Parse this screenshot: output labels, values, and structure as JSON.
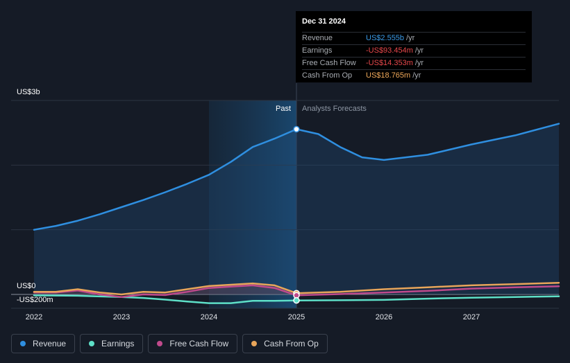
{
  "tooltip": {
    "date": "Dec 31 2024",
    "rows": [
      {
        "label": "Revenue",
        "value": "US$2.555b",
        "unit": "/yr",
        "color": "#3b9be8"
      },
      {
        "label": "Earnings",
        "value": "-US$93.454m",
        "unit": "/yr",
        "color": "#e8484b"
      },
      {
        "label": "Free Cash Flow",
        "value": "-US$14.353m",
        "unit": "/yr",
        "color": "#e8484b"
      },
      {
        "label": "Cash From Op",
        "value": "US$18.765m",
        "unit": "/yr",
        "color": "#f0a95a"
      }
    ]
  },
  "labels": {
    "past": "Past",
    "forecast": "Analysts Forecasts"
  },
  "legend": [
    {
      "label": "Revenue",
      "color": "#2f8fe0"
    },
    {
      "label": "Earnings",
      "color": "#5ee0c8"
    },
    {
      "label": "Free Cash Flow",
      "color": "#c04a8c"
    },
    {
      "label": "Cash From Op",
      "color": "#e8a55a"
    }
  ],
  "chart_data": {
    "type": "line",
    "y_ticks": [
      {
        "label": "US$3b",
        "value": 3000
      },
      {
        "label": "US$0",
        "value": 0
      },
      {
        "label": "-US$200m",
        "value": -200
      }
    ],
    "x_ticks": [
      {
        "label": "2022",
        "value": 2022.0
      },
      {
        "label": "2023",
        "value": 2023.0
      },
      {
        "label": "2024",
        "value": 2024.0
      },
      {
        "label": "2025",
        "value": 2025.0
      },
      {
        "label": "2026",
        "value": 2026.0
      },
      {
        "label": "2027",
        "value": 2027.0
      }
    ],
    "xlim": [
      2021.75,
      2028.0
    ],
    "ylim": [
      -290,
      3000
    ],
    "past_start": 2024.0,
    "now": 2025.0,
    "grid": true,
    "series": [
      {
        "name": "Revenue",
        "color": "#2f8fe0",
        "points": [
          [
            2022.0,
            1000
          ],
          [
            2022.25,
            1060
          ],
          [
            2022.5,
            1140
          ],
          [
            2022.75,
            1240
          ],
          [
            2023.0,
            1350
          ],
          [
            2023.25,
            1460
          ],
          [
            2023.5,
            1580
          ],
          [
            2023.75,
            1710
          ],
          [
            2024.0,
            1850
          ],
          [
            2024.25,
            2050
          ],
          [
            2024.5,
            2280
          ],
          [
            2024.75,
            2410
          ],
          [
            2025.0,
            2555
          ],
          [
            2025.25,
            2480
          ],
          [
            2025.5,
            2280
          ],
          [
            2025.75,
            2120
          ],
          [
            2026.0,
            2080
          ],
          [
            2026.5,
            2160
          ],
          [
            2027.0,
            2320
          ],
          [
            2027.5,
            2460
          ],
          [
            2028.0,
            2640
          ]
        ]
      },
      {
        "name": "Earnings",
        "color": "#5ee0c8",
        "points": [
          [
            2022.0,
            -15
          ],
          [
            2022.5,
            -20
          ],
          [
            2023.0,
            -40
          ],
          [
            2023.25,
            -55
          ],
          [
            2023.5,
            -80
          ],
          [
            2023.75,
            -110
          ],
          [
            2024.0,
            -135
          ],
          [
            2024.25,
            -135
          ],
          [
            2024.5,
            -100
          ],
          [
            2024.75,
            -100
          ],
          [
            2025.0,
            -93
          ],
          [
            2025.5,
            -90
          ],
          [
            2026.0,
            -85
          ],
          [
            2026.5,
            -65
          ],
          [
            2027.0,
            -50
          ],
          [
            2027.5,
            -40
          ],
          [
            2028.0,
            -30
          ]
        ]
      },
      {
        "name": "Free Cash Flow",
        "color": "#c04a8c",
        "points": [
          [
            2022.0,
            30
          ],
          [
            2022.25,
            30
          ],
          [
            2022.5,
            60
          ],
          [
            2022.75,
            0
          ],
          [
            2023.0,
            -40
          ],
          [
            2023.25,
            0
          ],
          [
            2023.5,
            -10
          ],
          [
            2023.75,
            40
          ],
          [
            2024.0,
            100
          ],
          [
            2024.25,
            120
          ],
          [
            2024.5,
            140
          ],
          [
            2024.75,
            100
          ],
          [
            2025.0,
            -14
          ],
          [
            2025.5,
            5
          ],
          [
            2026.0,
            30
          ],
          [
            2026.5,
            55
          ],
          [
            2027.0,
            90
          ],
          [
            2027.5,
            110
          ],
          [
            2028.0,
            125
          ]
        ]
      },
      {
        "name": "Cash From Op",
        "color": "#e8a55a",
        "points": [
          [
            2022.0,
            40
          ],
          [
            2022.25,
            40
          ],
          [
            2022.5,
            80
          ],
          [
            2022.75,
            30
          ],
          [
            2023.0,
            0
          ],
          [
            2023.25,
            40
          ],
          [
            2023.5,
            30
          ],
          [
            2023.75,
            80
          ],
          [
            2024.0,
            130
          ],
          [
            2024.25,
            150
          ],
          [
            2024.5,
            170
          ],
          [
            2024.75,
            140
          ],
          [
            2025.0,
            19
          ],
          [
            2025.5,
            40
          ],
          [
            2026.0,
            80
          ],
          [
            2026.5,
            110
          ],
          [
            2027.0,
            140
          ],
          [
            2027.5,
            160
          ],
          [
            2028.0,
            180
          ]
        ]
      }
    ]
  }
}
